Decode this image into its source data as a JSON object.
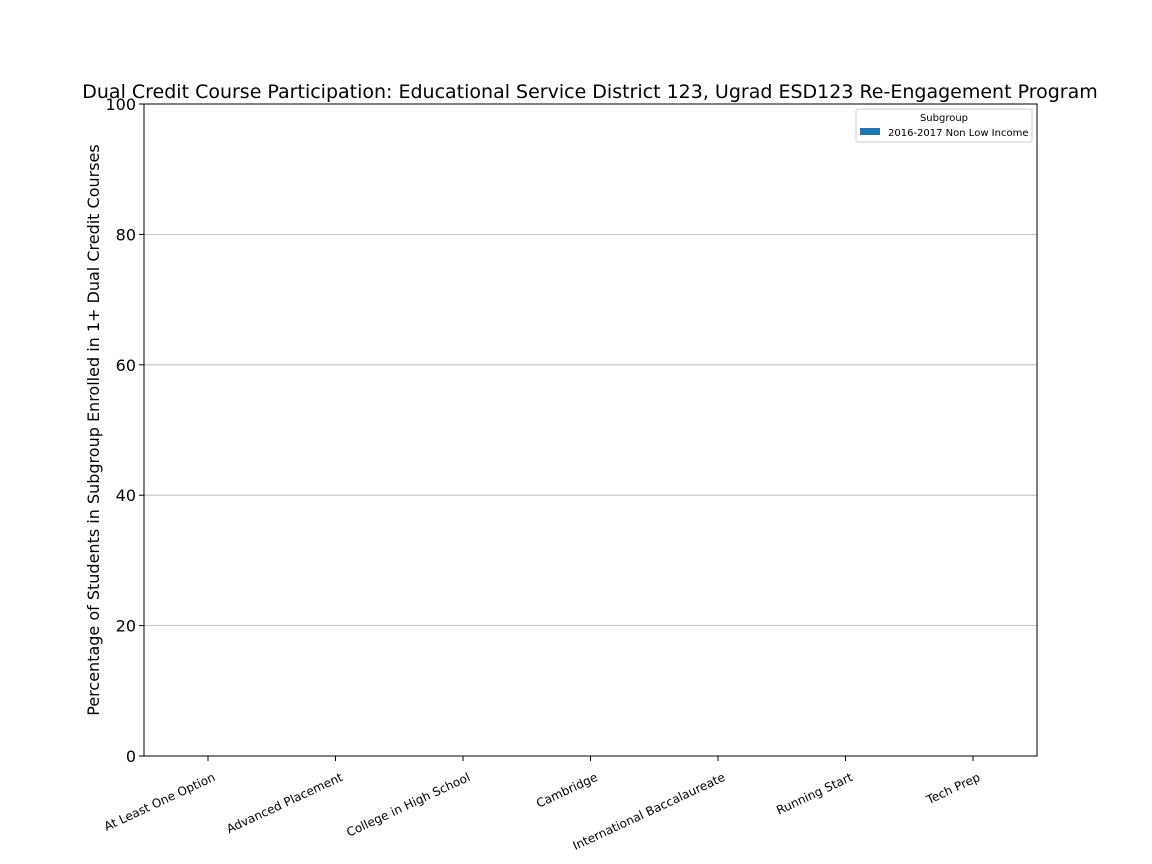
{
  "chart_data": {
    "type": "bar",
    "title": "Dual Credit Course Participation: Educational Service District 123, Ugrad ESD123 Re-Engagement Program",
    "xlabel": "",
    "ylabel": "Percentage of Students in Subgroup Enrolled in 1+ Dual Credit Courses",
    "ylim": [
      0,
      100
    ],
    "yticks": [
      0,
      20,
      40,
      60,
      80,
      100
    ],
    "grid": "y",
    "categories": [
      "At Least One Option",
      "Advanced Placement",
      "College in High School",
      "Cambridge",
      "International Baccalaureate",
      "Running Start",
      "Tech Prep"
    ],
    "series": [
      {
        "name": "2016-2017 Non Low Income",
        "color": "#1f77b4",
        "values": [
          0,
          0,
          0,
          0,
          0,
          0,
          0
        ]
      }
    ],
    "legend": {
      "title": "Subgroup",
      "placement": "top-right"
    }
  }
}
